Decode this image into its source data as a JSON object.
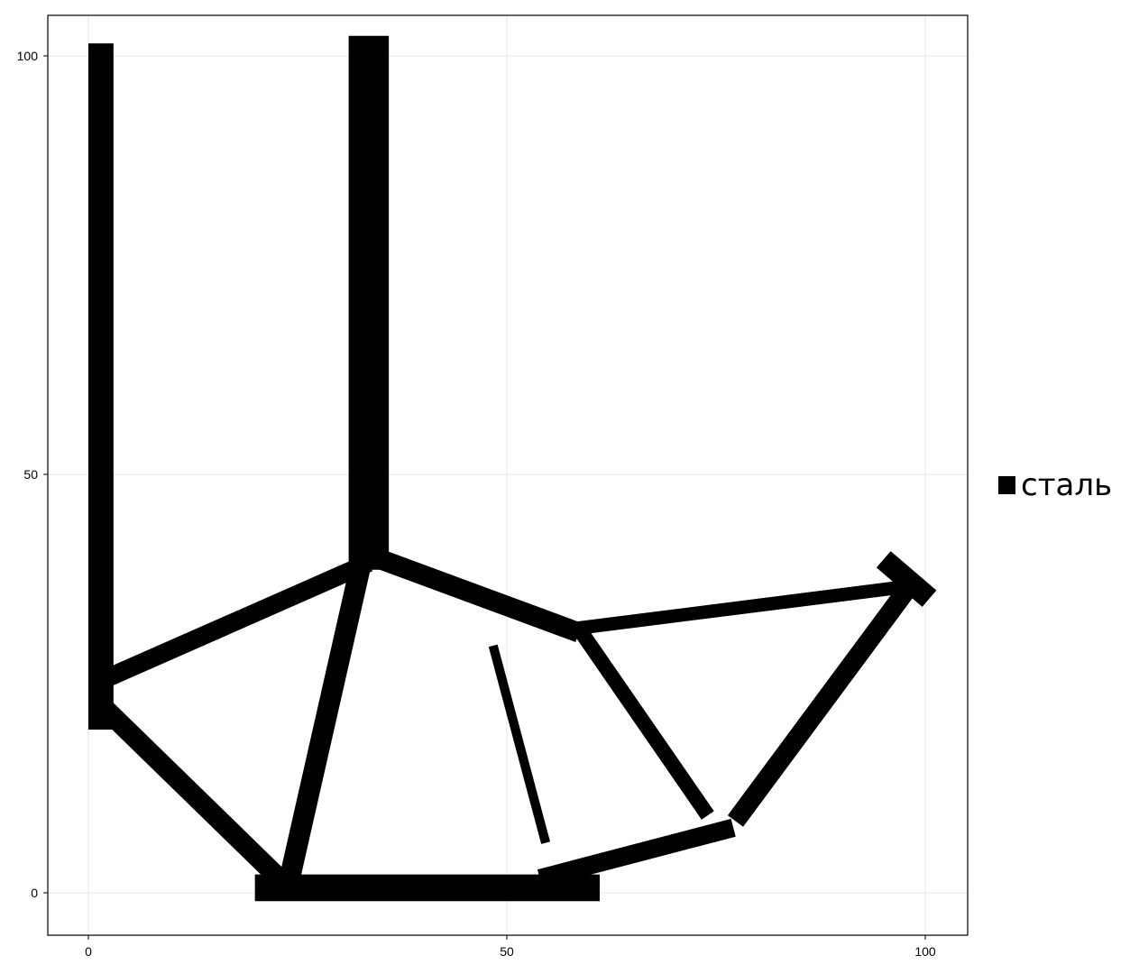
{
  "chart_data": {
    "type": "heatmap",
    "title": "",
    "xlabel": "",
    "ylabel": "",
    "xlim": [
      -5,
      105
    ],
    "ylim": [
      -5,
      105
    ],
    "x_ticks": [
      0,
      50,
      100
    ],
    "y_ticks": [
      0,
      50,
      100
    ],
    "grid": true,
    "legend": {
      "position": "right",
      "entries": [
        {
          "label": "сталь",
          "color": "#000000"
        }
      ]
    },
    "material_color": "#000000",
    "members": [
      {
        "id": "left-column",
        "from": [
          1.5,
          100
        ],
        "to": [
          1.5,
          21
        ],
        "thickness": 3
      },
      {
        "id": "center-column",
        "from": [
          33.5,
          100
        ],
        "to": [
          33.5,
          41
        ],
        "thickness": 4.8
      },
      {
        "id": "left-upper-diagonal",
        "from": [
          3,
          26
        ],
        "to": [
          32.5,
          39
        ],
        "thickness": 2.2
      },
      {
        "id": "left-lower-diagonal",
        "from": [
          2,
          22
        ],
        "to": [
          22,
          2.5
        ],
        "thickness": 2.4
      },
      {
        "id": "inner-left-diagonal",
        "from": [
          32.5,
          39
        ],
        "to": [
          24,
          1.5
        ],
        "thickness": 2.5
      },
      {
        "id": "bottom-chord",
        "from": [
          21.5,
          0.6
        ],
        "to": [
          59.5,
          0.6
        ],
        "thickness": 3.2
      },
      {
        "id": "bottom-right-chord",
        "from": [
          55,
          2
        ],
        "to": [
          76,
          7.5
        ],
        "thickness": 2.2
      },
      {
        "id": "center-right-diagonal",
        "from": [
          34.5,
          40
        ],
        "to": [
          57.5,
          31.5
        ],
        "thickness": 2.4
      },
      {
        "id": "top-right-chord",
        "from": [
          57.5,
          31.5
        ],
        "to": [
          97,
          36.5
        ],
        "thickness": 1.6
      },
      {
        "id": "right-hook",
        "from": [
          96,
          39
        ],
        "to": [
          99.5,
          36
        ],
        "thickness": 2.6
      },
      {
        "id": "right-return-diagonal",
        "from": [
          98,
          36.5
        ],
        "to": [
          78,
          9.5
        ],
        "thickness": 2.3
      },
      {
        "id": "mid-right-diagonal",
        "from": [
          59,
          31
        ],
        "to": [
          73.5,
          10
        ],
        "thickness": 1.8
      },
      {
        "id": "thin-strand",
        "from": [
          48.5,
          29
        ],
        "to": [
          54.5,
          6.5
        ],
        "thickness": 1.1
      }
    ]
  }
}
